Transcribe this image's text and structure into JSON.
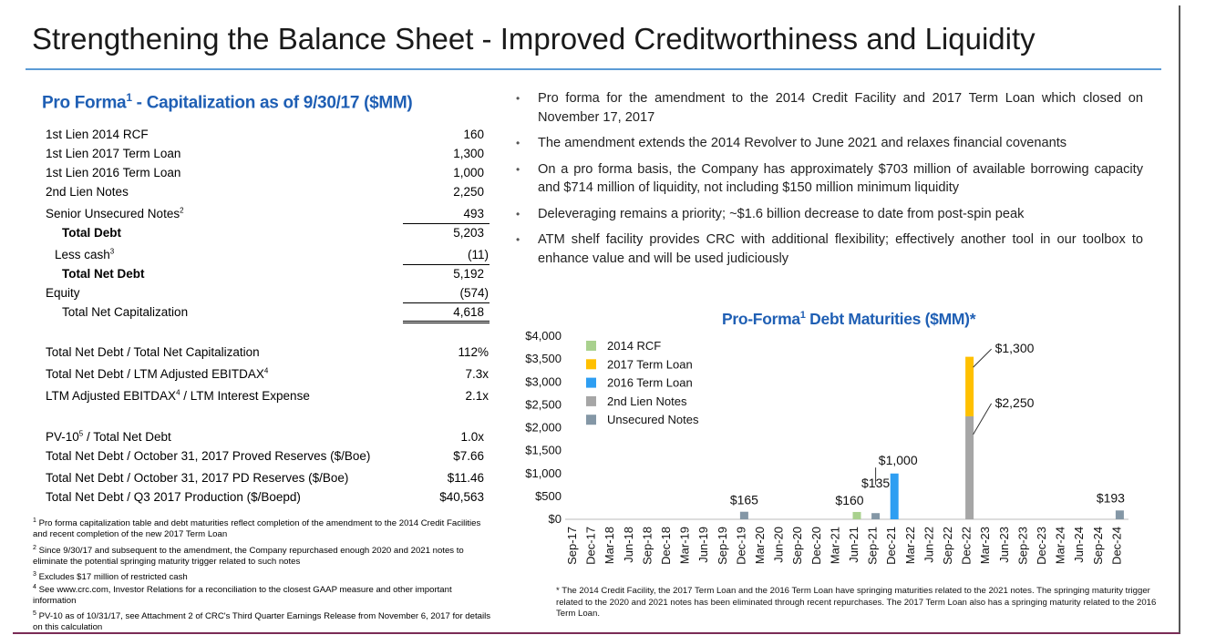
{
  "title": "Strengthening the Balance Sheet - Improved Creditworthiness and Liquidity",
  "capitalization": {
    "title_prefix": "Pro Forma",
    "title_sup": "1",
    "title_suffix": " - Capitalization as of 9/30/17 ($MM)",
    "lines": [
      {
        "label": "1st Lien 2014 RCF",
        "value": "160"
      },
      {
        "label": "1st Lien 2017 Term Loan",
        "value": "1,300"
      },
      {
        "label": "1st Lien 2016 Term Loan",
        "value": "1,000"
      },
      {
        "label": "2nd Lien Notes",
        "value": "2,250"
      },
      {
        "label": "Senior Unsecured Notes",
        "sup": "2",
        "value": "493"
      },
      {
        "label": "Total Debt",
        "value": "5,203"
      },
      {
        "label": "Less cash",
        "sup": "3",
        "value": "(11)"
      },
      {
        "label": "Total Net Debt",
        "value": "5,192"
      },
      {
        "label": "Equity",
        "value": "(574)"
      },
      {
        "label": "Total Net Capitalization",
        "value": "4,618"
      }
    ],
    "ratios": [
      {
        "label": "Total Net Debt / Total Net Capitalization",
        "value": "112%"
      },
      {
        "label": "Total Net Debt / LTM Adjusted EBITDAX",
        "sup": "4",
        "value": "7.3x"
      },
      {
        "label": "LTM Adjusted EBITDAX",
        "sup": "4",
        "label_rest": " / LTM Interest Expense",
        "value": "2.1x"
      }
    ],
    "metrics": [
      {
        "label": "PV-10",
        "sup": "5",
        "label_rest": " / Total Net Debt",
        "value": "1.0x"
      },
      {
        "label": "Total Net Debt / October 31, 2017 Proved Reserves ($/Boe)",
        "value": "$7.66"
      },
      {
        "label": "Total Net Debt / October 31, 2017 PD Reserves ($/Boe)",
        "value": "$11.46"
      },
      {
        "label": "Total Net Debt / Q3 2017 Production ($/Boepd)",
        "value": "$40,563"
      }
    ]
  },
  "footnotes": [
    {
      "num": "1",
      "text": "Pro forma capitalization table and debt maturities reflect completion of the amendment to the 2014 Credit Facilities and recent completion of the new 2017 Term Loan"
    },
    {
      "num": "2",
      "text": "Since 9/30/17 and subsequent to the amendment, the Company repurchased enough 2020 and 2021 notes to eliminate the potential springing maturity trigger related to such notes"
    },
    {
      "num": "3",
      "text": "Excludes $17 million of restricted cash"
    },
    {
      "num": "4",
      "text": "See www.crc.com, Investor Relations for a reconciliation to the closest GAAP measure and other important information"
    },
    {
      "num": "5",
      "text": "PV-10 as of 10/31/17, see Attachment 2 of CRC's Third Quarter Earnings Release from November 6, 2017 for details on this calculation"
    }
  ],
  "bullets": [
    "Pro forma for the amendment to the 2014 Credit Facility and 2017 Term Loan which closed on November 17, 2017",
    "The amendment extends the 2014 Revolver to June 2021 and relaxes financial covenants",
    "On a pro forma basis, the Company has approximately $703 million of available borrowing capacity and $714 million of liquidity, not including $150 million minimum liquidity",
    "Deleveraging remains a priority; ~$1.6 billion decrease to date from post-spin peak",
    "ATM shelf facility provides CRC with additional flexibility; effectively another tool in our toolbox to enhance value and will be used judiciously"
  ],
  "chart_title_prefix": "Pro-Forma",
  "chart_title_sup": "1",
  "chart_title_suffix": " Debt Maturities ($MM)*",
  "chart_note": "* The 2014 Credit Facility, the 2017 Term Loan and the 2016 Term Loan have springing maturities related to the 2021 notes. The springing maturity trigger related to the 2020 and 2021 notes has been eliminated through recent repurchases. The 2017 Term Loan also has a springing maturity related to the 2016 Term Loan.",
  "chart_data": {
    "type": "bar",
    "stacked": true,
    "categories": [
      "Sep-17",
      "Dec-17",
      "Mar-18",
      "Jun-18",
      "Sep-18",
      "Dec-18",
      "Mar-19",
      "Jun-19",
      "Sep-19",
      "Dec-19",
      "Mar-20",
      "Jun-20",
      "Sep-20",
      "Dec-20",
      "Mar-21",
      "Jun-21",
      "Sep-21",
      "Dec-21",
      "Mar-22",
      "Jun-22",
      "Sep-22",
      "Dec-22",
      "Mar-23",
      "Jun-23",
      "Sep-23",
      "Dec-23",
      "Mar-24",
      "Jun-24",
      "Sep-24",
      "Dec-24"
    ],
    "series": [
      {
        "name": "2014 RCF",
        "color": "#a9d18e",
        "values": {
          "Jun-21": 160
        }
      },
      {
        "name": "2017 Term Loan",
        "color": "#ffc000",
        "values": {
          "Dec-22": 1300
        }
      },
      {
        "name": "2016 Term Loan",
        "color": "#2e9ef2",
        "values": {
          "Dec-21": 1000
        }
      },
      {
        "name": "2nd Lien Notes",
        "color": "#a6a6a6",
        "values": {
          "Dec-22": 2250
        }
      },
      {
        "name": "Unsecured Notes",
        "color": "#8497a6",
        "values": {
          "Dec-19": 165,
          "Sep-21": 135,
          "Dec-24": 193
        }
      }
    ],
    "yticks": [
      "$0",
      "$500",
      "$1,000",
      "$1,500",
      "$2,000",
      "$2,500",
      "$3,000",
      "$3,500",
      "$4,000"
    ],
    "ylim": [
      0,
      4000
    ],
    "legend_position": "top-left",
    "annotations": [
      {
        "text": "$165",
        "category": "Dec-19",
        "value": 165
      },
      {
        "text": "$160",
        "category": "Jun-21",
        "value": 160
      },
      {
        "text": "$135",
        "category": "Sep-21",
        "value": 135
      },
      {
        "text": "$1,000",
        "category": "Dec-21",
        "value": 1000
      },
      {
        "text": "$2,250",
        "category": "Dec-22",
        "value": 2250
      },
      {
        "text": "$1,300",
        "category": "Dec-22",
        "value": 1300
      },
      {
        "text": "$193",
        "category": "Dec-24",
        "value": 193
      }
    ]
  }
}
